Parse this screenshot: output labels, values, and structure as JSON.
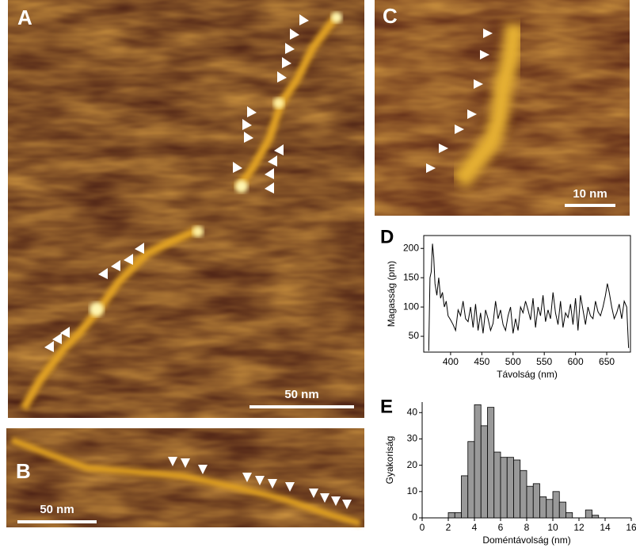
{
  "panels": {
    "a": "A",
    "b": "B",
    "c": "C",
    "d": "D",
    "e": "E"
  },
  "scale_bars": {
    "a": "50 nm",
    "b": "50 nm",
    "c": "10 nm"
  },
  "chart_data": [
    {
      "type": "line",
      "y_label": "Magasság (pm)",
      "x_label": "Távolság (nm)",
      "x": [
        365,
        367,
        369,
        371,
        373,
        375,
        378,
        381,
        384,
        387,
        390,
        393,
        396,
        400,
        404,
        408,
        412,
        416,
        420,
        424,
        428,
        432,
        436,
        440,
        444,
        448,
        452,
        456,
        460,
        464,
        468,
        472,
        476,
        480,
        484,
        488,
        492,
        496,
        500,
        504,
        508,
        512,
        516,
        520,
        524,
        528,
        532,
        536,
        540,
        544,
        548,
        552,
        556,
        560,
        564,
        568,
        572,
        576,
        580,
        584,
        588,
        592,
        596,
        600,
        604,
        608,
        612,
        616,
        620,
        624,
        628,
        632,
        636,
        640,
        644,
        648,
        651,
        654,
        658,
        662,
        666,
        670,
        674,
        678,
        682,
        685
      ],
      "series": [
        {
          "color": "#000000",
          "values": [
            25,
            150,
            160,
            208,
            185,
            140,
            120,
            150,
            115,
            125,
            100,
            110,
            85,
            78,
            70,
            60,
            95,
            85,
            110,
            80,
            75,
            100,
            65,
            105,
            60,
            90,
            55,
            95,
            80,
            60,
            72,
            110,
            80,
            95,
            70,
            60,
            85,
            100,
            55,
            80,
            60,
            100,
            90,
            110,
            95,
            78,
            115,
            65,
            100,
            85,
            120,
            75,
            95,
            80,
            125,
            90,
            70,
            110,
            65,
            90,
            82,
            105,
            70,
            115,
            60,
            120,
            95,
            70,
            100,
            85,
            80,
            110,
            92,
            85,
            100,
            120,
            140,
            125,
            100,
            80,
            90,
            105,
            80,
            110,
            100,
            30
          ]
        }
      ],
      "xlim": [
        357,
        688
      ],
      "ylim": [
        23,
        222
      ],
      "xticks": [
        400,
        450,
        500,
        550,
        600,
        650
      ],
      "yticks": [
        50,
        100,
        150,
        200
      ]
    },
    {
      "type": "histogram",
      "y_label": "Gyakoriság",
      "x_label": "Doméntávolság (nm)",
      "color": "#999999",
      "bins": [
        2,
        2.5,
        3,
        3.5,
        4,
        4.5,
        5,
        5.5,
        6,
        6.5,
        7,
        7.5,
        8,
        8.5,
        9,
        9.5,
        10,
        10.5,
        11,
        11.5,
        12,
        12.5,
        13,
        13.5,
        14
      ],
      "values": [
        2,
        2,
        16,
        29,
        43,
        35,
        42,
        25,
        23,
        23,
        22,
        18,
        12,
        13,
        8,
        7,
        10,
        6,
        2,
        0,
        0,
        3,
        1,
        0
      ],
      "xlim": [
        0,
        16
      ],
      "ylim": [
        0,
        44
      ],
      "xticks": [
        0,
        2,
        4,
        6,
        8,
        10,
        12,
        14,
        16
      ],
      "yticks": [
        0,
        10,
        20,
        30,
        40
      ]
    }
  ]
}
